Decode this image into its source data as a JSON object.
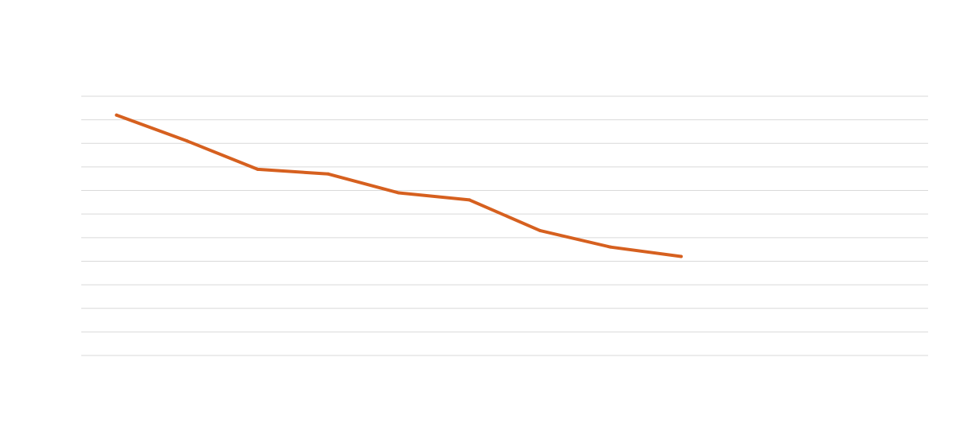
{
  "chart_data": {
    "type": "line",
    "title": "",
    "xlabel": "",
    "ylabel": "",
    "ylim": [
      0,
      11
    ],
    "grid": true,
    "colors": {
      "series": "#D6601F",
      "grid": "#D9D9D9",
      "background": "#FFFFFF"
    },
    "series": [
      {
        "values": [
          10.2,
          9.1,
          7.9,
          7.7,
          6.9,
          6.6,
          5.3,
          4.6,
          4.2
        ]
      }
    ],
    "x": [
      1,
      2,
      3,
      4,
      5,
      6,
      7,
      8,
      9
    ]
  }
}
